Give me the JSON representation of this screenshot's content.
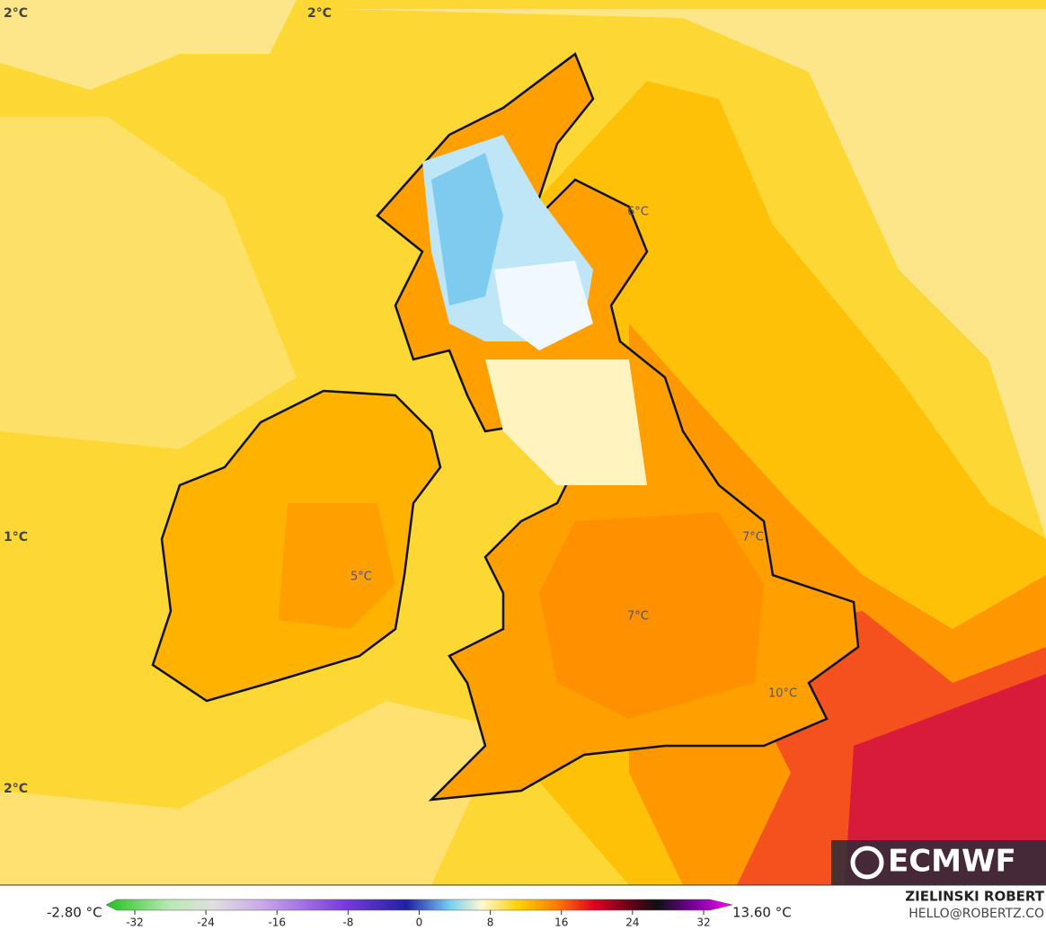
{
  "map": {
    "labels": [
      "2°C",
      "2°C",
      "1°C",
      "2°C",
      "6°C",
      "5°C",
      "7°C",
      "7°C",
      "10°C"
    ],
    "logo": "ECMWF"
  },
  "colorbar": {
    "min_label": "-2.80 °C",
    "max_label": "13.60 °C",
    "ticks": [
      -32,
      -24,
      -16,
      -8,
      0,
      8,
      16,
      24,
      32
    ]
  },
  "credit": {
    "name": "ZIELINSKI ROBERT",
    "email": "HELLO@ROBERTZ.CO"
  }
}
